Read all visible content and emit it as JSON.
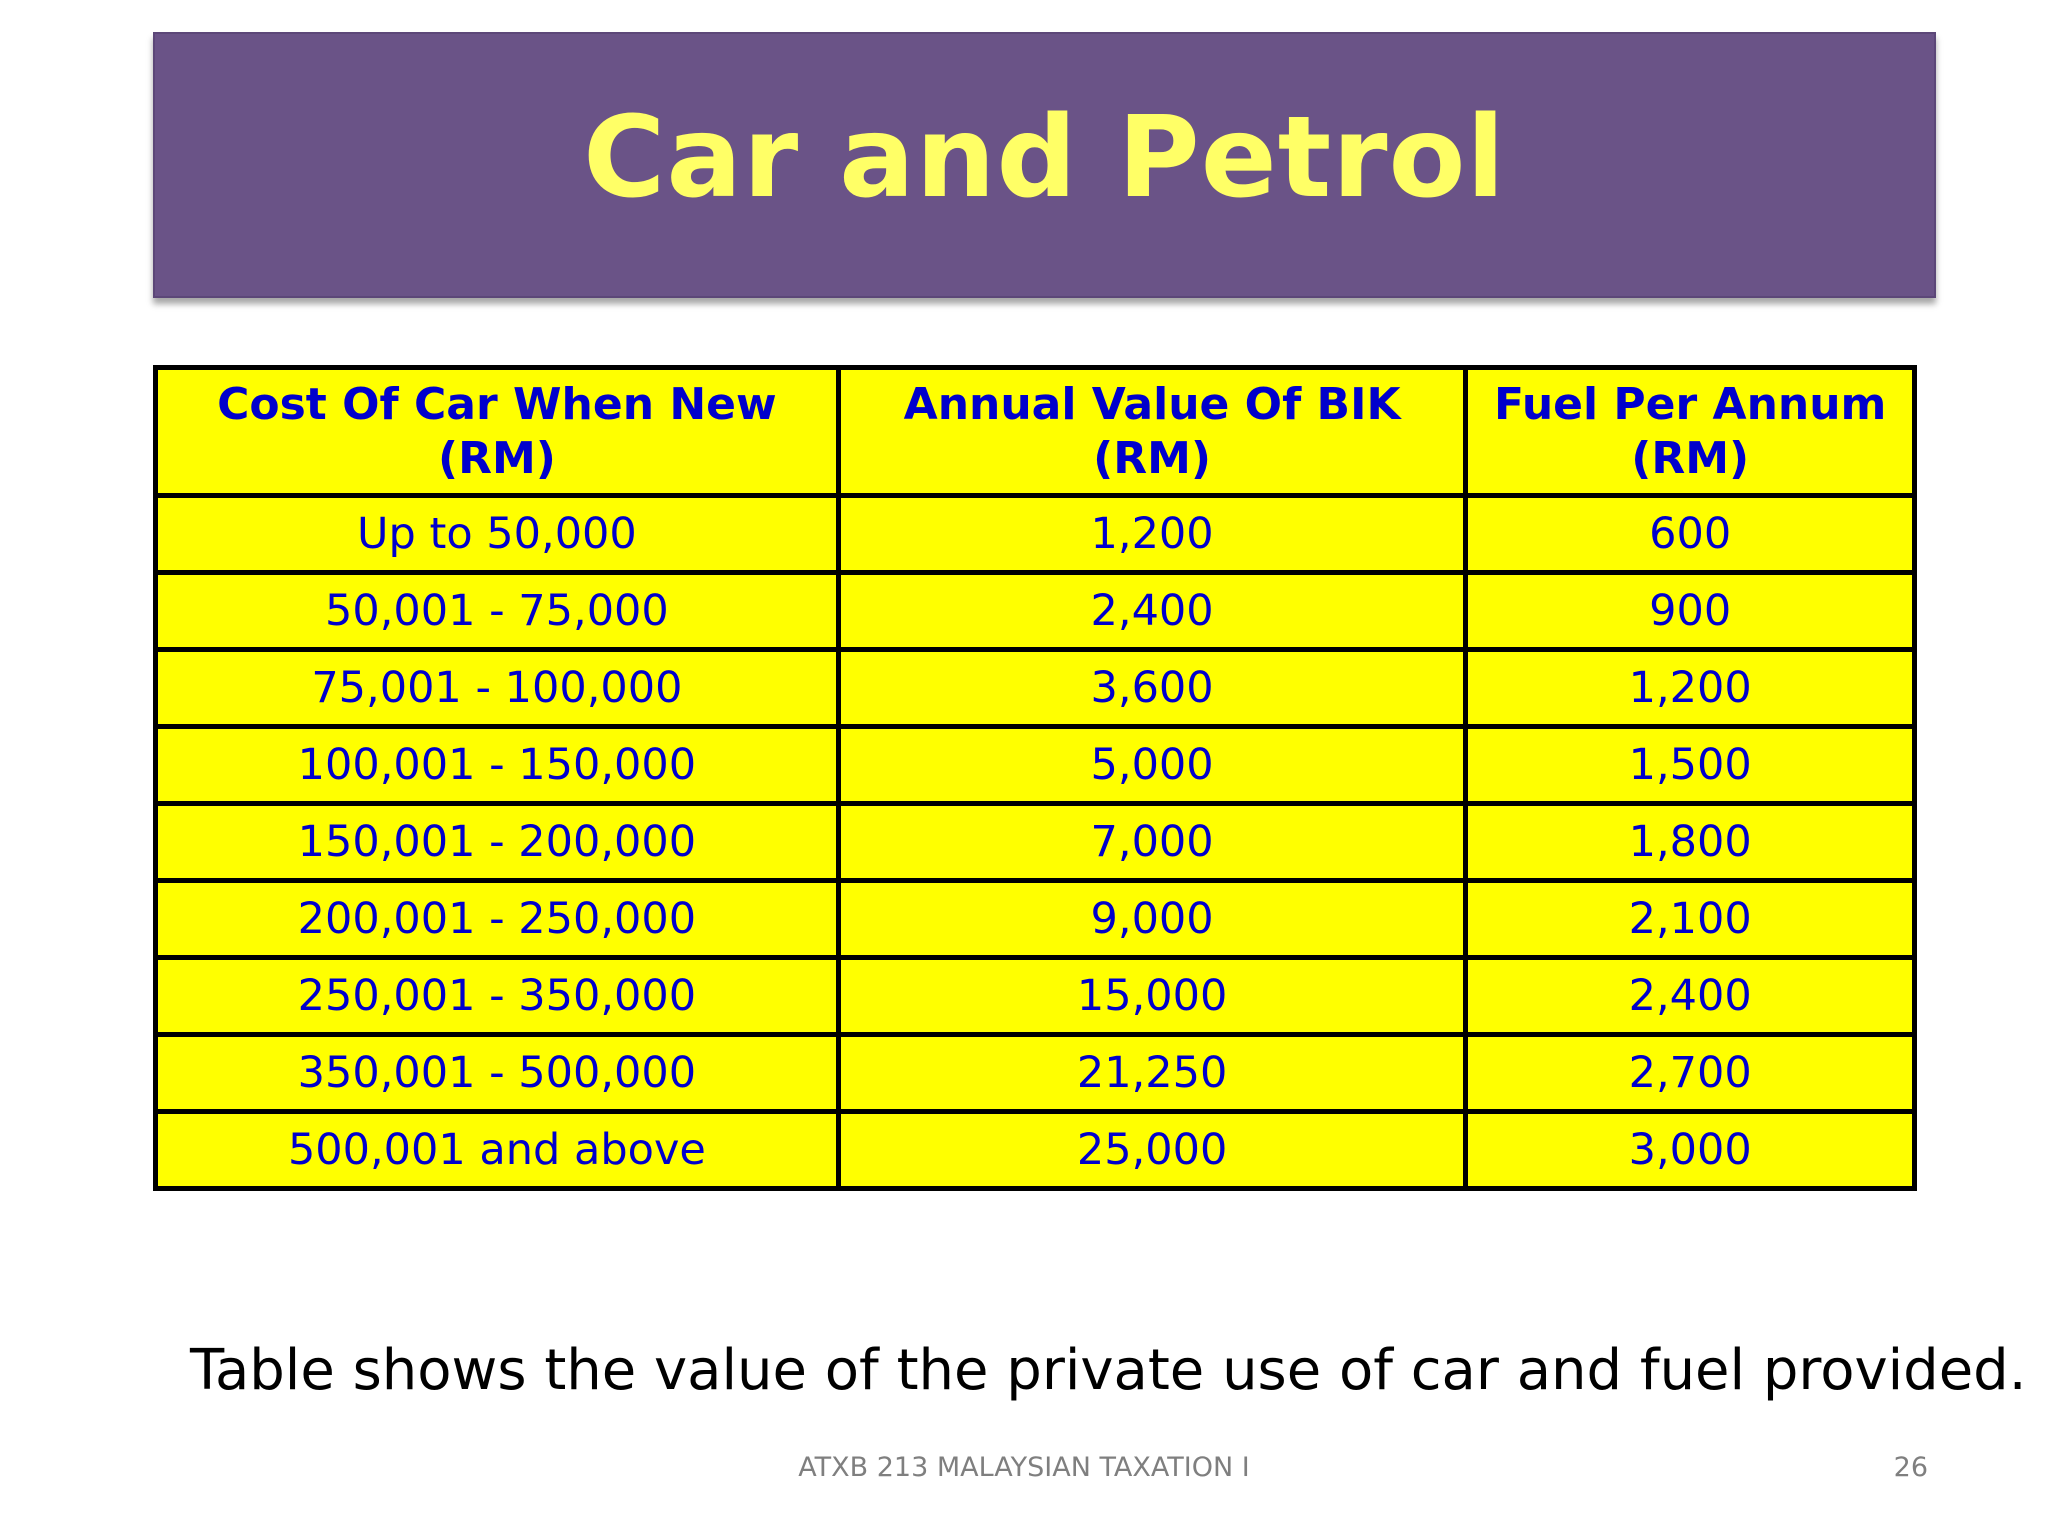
{
  "slide": {
    "title": "Car and Petrol",
    "caption": "Table shows the value of the private use of car and fuel provided.",
    "footer": "ATXB 213 MALAYSIAN TAXATION I",
    "page_number": "26"
  },
  "table": {
    "headers": [
      {
        "line1": "Cost Of Car When New",
        "line2": "(RM)"
      },
      {
        "line1": "Annual Value Of BIK",
        "line2": "(RM)"
      },
      {
        "line1": "Fuel Per Annum",
        "line2": "(RM)"
      }
    ],
    "rows": [
      [
        "Up to 50,000",
        "1,200",
        "600"
      ],
      [
        "50,001 - 75,000",
        "2,400",
        "900"
      ],
      [
        "75,001 - 100,000",
        "3,600",
        "1,200"
      ],
      [
        "100,001 - 150,000",
        "5,000",
        "1,500"
      ],
      [
        "150,001 - 200,000",
        "7,000",
        "1,800"
      ],
      [
        "200,001 - 250,000",
        "9,000",
        "2,100"
      ],
      [
        "250,001 - 350,000",
        "15,000",
        "2,400"
      ],
      [
        "350,001 - 500,000",
        "21,250",
        "2,700"
      ],
      [
        "500,001 and above",
        "25,000",
        "3,000"
      ]
    ]
  },
  "colors": {
    "banner": "#6a5387",
    "title_text": "#ffff66",
    "table_fill": "#ffff00",
    "table_text": "#0000cc",
    "table_border": "#000000"
  }
}
